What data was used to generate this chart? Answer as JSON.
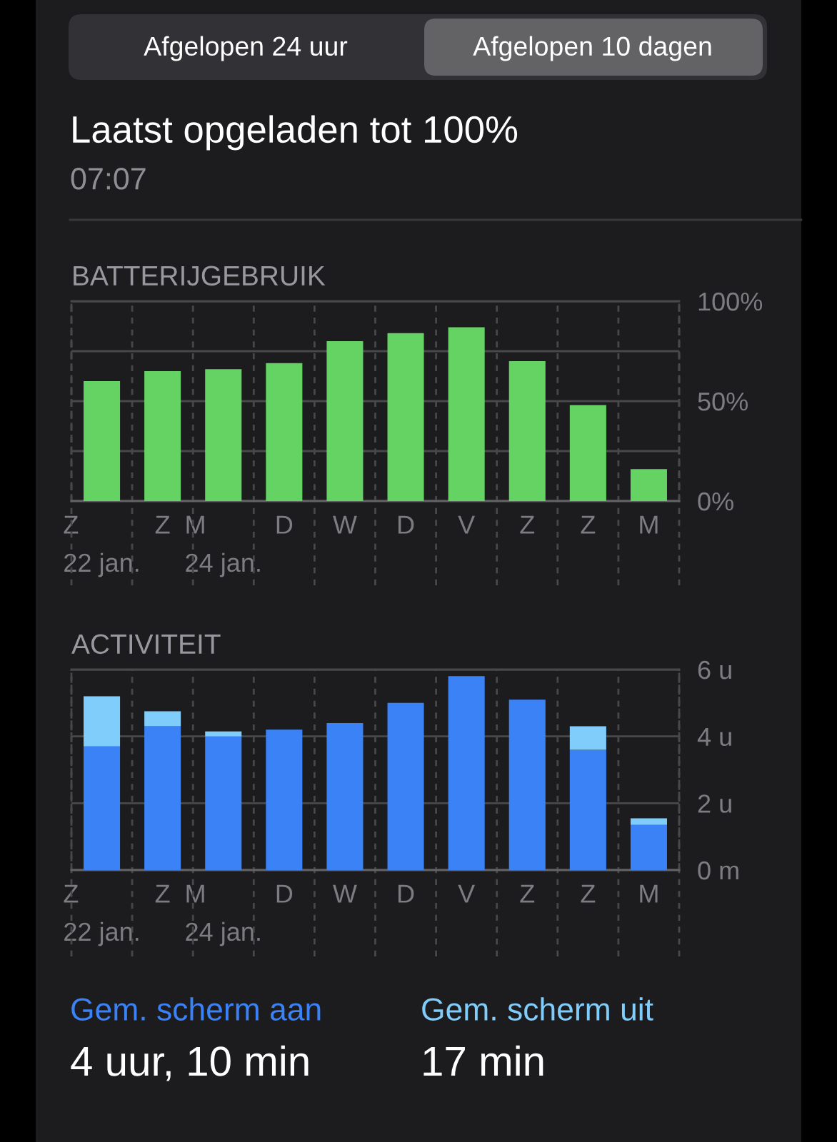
{
  "chart_data": [
    {
      "type": "bar",
      "title": "BATTERIJGEBRUIK",
      "annotations": [
        "Afgelopen 24 uur",
        "Afgelopen 10 dagen",
        "Laatst opgeladen tot 100%",
        "07:07"
      ],
      "categories": [
        "Z\n22 jan.",
        "Z",
        "M\n24 jan.",
        "D",
        "W",
        "D",
        "V",
        "Z",
        "Z",
        "M"
      ],
      "values": [
        60,
        65,
        66,
        69,
        80,
        84,
        87,
        70,
        48,
        16
      ],
      "color": "#65d264",
      "ylim": [
        0,
        100
      ],
      "yticks": [
        {
          "value": 0,
          "label": "0%"
        },
        {
          "value": 25,
          "label": null
        },
        {
          "value": 50,
          "label": "50%"
        },
        {
          "value": 75,
          "label": null
        },
        {
          "value": 100,
          "label": "100%"
        }
      ],
      "grid": true
    },
    {
      "type": "bar",
      "title": "ACTIVITEIT",
      "stacked": true,
      "categories": [
        "Z\n22 jan.",
        "Z",
        "M\n24 jan.",
        "D",
        "W",
        "D",
        "V",
        "Z",
        "Z",
        "M"
      ],
      "series": [
        {
          "name": "Gem. scherm aan",
          "color": "#3a82f6",
          "values": [
            3.7,
            4.3,
            4.0,
            4.2,
            4.4,
            5.0,
            5.8,
            5.1,
            3.6,
            1.35
          ]
        },
        {
          "name": "Gem. scherm uit",
          "color": "#80cdfb",
          "values": [
            1.5,
            0.45,
            0.15,
            null,
            null,
            null,
            null,
            null,
            0.7,
            0.2
          ]
        }
      ],
      "ylim": [
        0,
        6
      ],
      "yticks": [
        {
          "value": 0,
          "label": "0 m"
        },
        {
          "value": 2,
          "label": "2 u"
        },
        {
          "value": 4,
          "label": "4 u"
        },
        {
          "value": 6,
          "label": "6 u"
        }
      ],
      "grid": true,
      "legend": "bottom",
      "annotations": [
        "4 uur, 10 min",
        "17 min"
      ]
    }
  ]
}
